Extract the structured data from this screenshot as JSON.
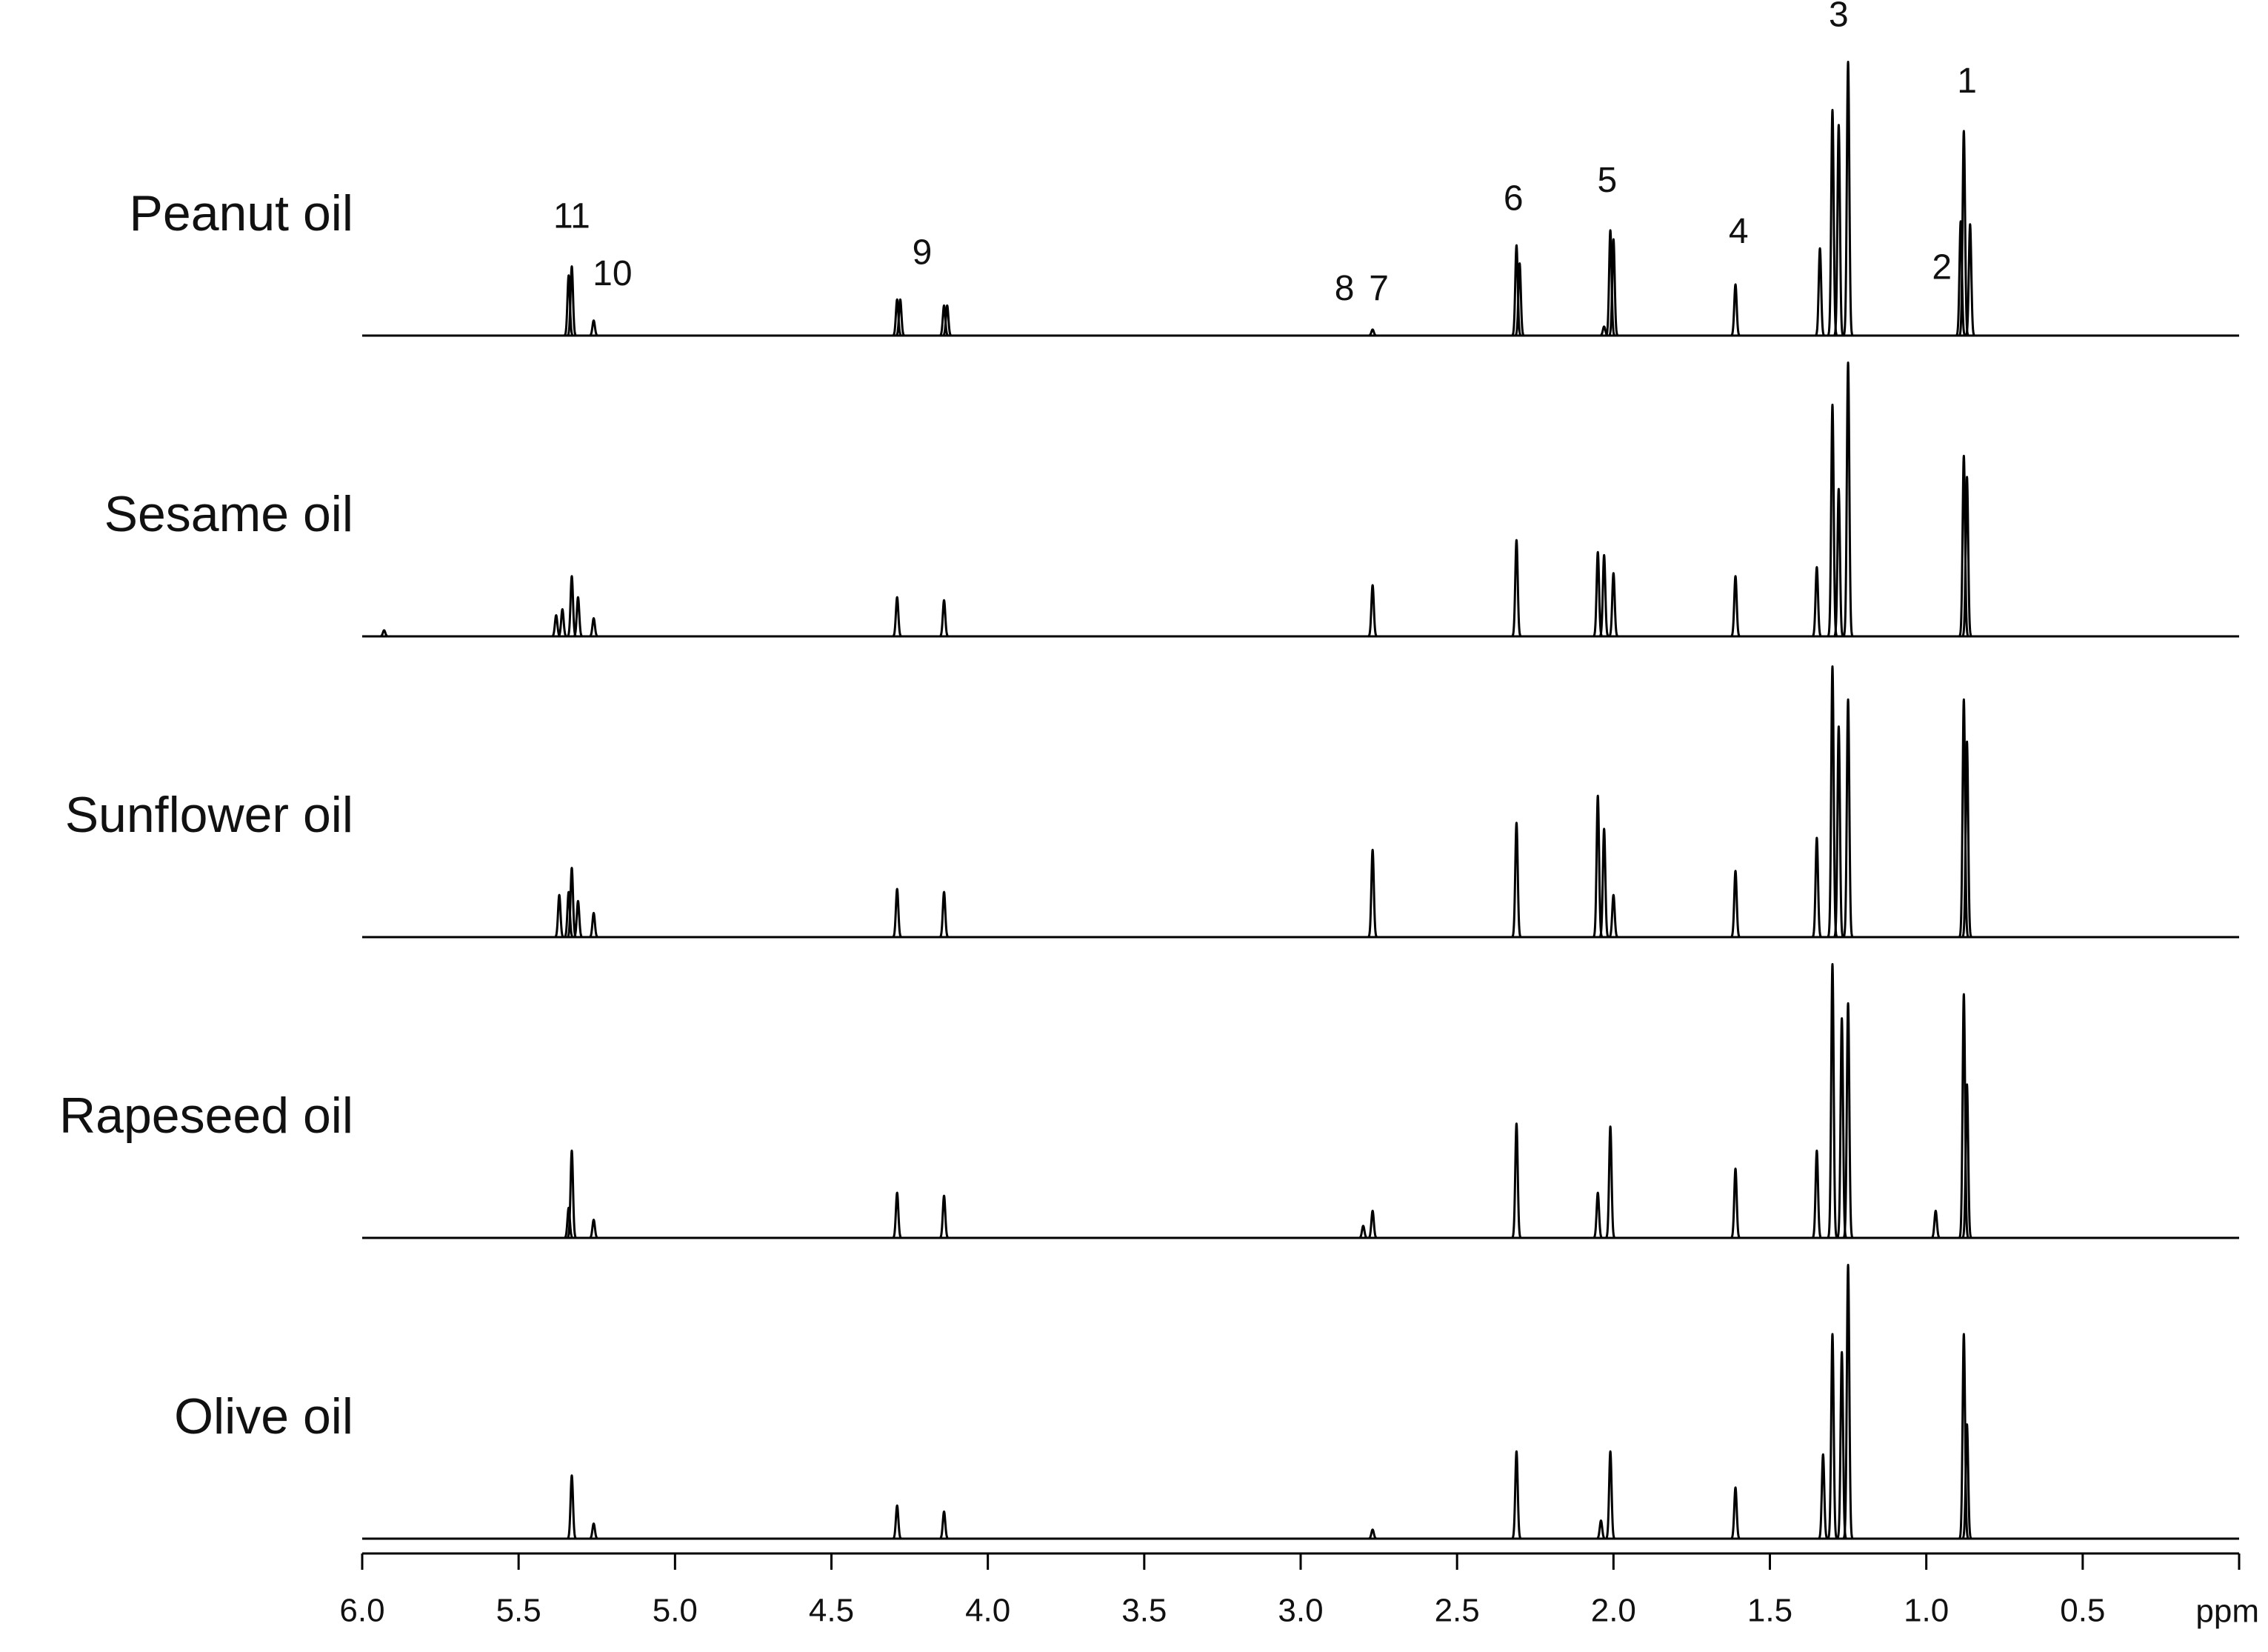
{
  "chart_data": {
    "type": "spectrum",
    "xlabel": "ppm",
    "xlim": [
      6,
      0
    ],
    "xticks": [
      {
        "value": 6,
        "label": "6.0"
      },
      5.5,
      {
        "value": 5,
        "label": "5.0"
      },
      4.5,
      {
        "value": 4,
        "label": "4.0"
      },
      3.5,
      {
        "value": 3,
        "label": "3.0"
      },
      2.5,
      {
        "value": 2,
        "label": "2.0"
      },
      1.5,
      {
        "value": 1,
        "label": "1.0"
      },
      0.5
    ],
    "ylim": [
      0,
      100
    ],
    "color": "#000000",
    "series": [
      {
        "name": "Peanut oil",
        "x": [
          5.34,
          5.33,
          5.26,
          4.29,
          4.28,
          4.14,
          4.13,
          2.77,
          2.31,
          2.3,
          2.03,
          2.01,
          2.0,
          1.61,
          1.34,
          1.3,
          1.28,
          1.25,
          0.89,
          0.88,
          0.86
        ],
        "values": [
          20,
          23,
          5,
          12,
          12,
          10,
          10,
          2,
          30,
          24,
          3,
          35,
          32,
          17,
          29,
          75,
          70,
          91,
          38,
          68,
          37
        ],
        "annotations": [
          {
            "text": "11",
            "x": 5.33,
            "y": 33
          },
          {
            "text": "10",
            "x": 5.2,
            "y": 14
          },
          {
            "text": "9",
            "x": 4.21,
            "y": 21
          },
          {
            "text": "8",
            "x": 2.86,
            "y": 9
          },
          {
            "text": "7",
            "x": 2.75,
            "y": 9
          },
          {
            "text": "6",
            "x": 2.32,
            "y": 39
          },
          {
            "text": "5",
            "x": 2.02,
            "y": 45
          },
          {
            "text": "4",
            "x": 1.6,
            "y": 28
          },
          {
            "text": "3",
            "x": 1.28,
            "y": 100
          },
          {
            "text": "2",
            "x": 0.95,
            "y": 16
          },
          {
            "text": "1",
            "x": 0.87,
            "y": 78
          }
        ]
      },
      {
        "name": "Sesame oil",
        "x": [
          5.93,
          5.38,
          5.36,
          5.33,
          5.31,
          5.26,
          4.29,
          4.14,
          2.77,
          2.31,
          2.05,
          2.03,
          2.0,
          1.61,
          1.35,
          1.3,
          1.28,
          1.25,
          0.88,
          0.87
        ],
        "values": [
          2,
          7,
          9,
          20,
          13,
          6,
          13,
          12,
          17,
          32,
          28,
          27,
          21,
          20,
          23,
          77,
          49,
          91,
          60,
          53
        ]
      },
      {
        "name": "Sunflower oil",
        "x": [
          5.37,
          5.34,
          5.33,
          5.31,
          5.26,
          4.29,
          4.14,
          2.77,
          2.31,
          2.05,
          2.03,
          2.0,
          1.61,
          1.35,
          1.3,
          1.28,
          1.25,
          0.88,
          0.87
        ],
        "values": [
          14,
          15,
          23,
          12,
          8,
          16,
          15,
          29,
          38,
          47,
          36,
          14,
          22,
          33,
          90,
          70,
          79,
          79,
          65
        ]
      },
      {
        "name": "Rapeseed oil",
        "x": [
          5.34,
          5.33,
          5.26,
          4.29,
          4.14,
          2.8,
          2.77,
          2.31,
          2.05,
          2.01,
          1.61,
          1.35,
          1.3,
          1.27,
          1.25,
          0.97,
          0.88,
          0.87
        ],
        "values": [
          10,
          29,
          6,
          15,
          14,
          4,
          9,
          38,
          15,
          37,
          23,
          29,
          91,
          73,
          78,
          9,
          81,
          51
        ]
      },
      {
        "name": "Olive oil",
        "x": [
          5.33,
          5.26,
          4.29,
          4.14,
          2.77,
          2.31,
          2.04,
          2.01,
          1.61,
          1.33,
          1.3,
          1.27,
          1.25,
          0.88,
          0.87
        ],
        "values": [
          21,
          5,
          11,
          9,
          3,
          29,
          6,
          29,
          17,
          28,
          68,
          62,
          91,
          68,
          38
        ]
      }
    ]
  }
}
